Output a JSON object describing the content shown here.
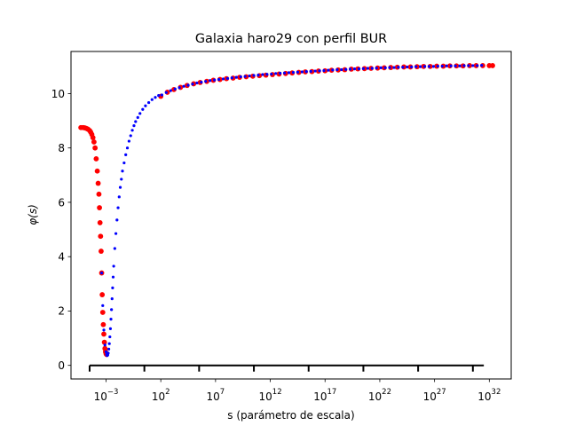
{
  "chart_data": {
    "type": "scatter",
    "title": "Galaxia haro29 con perfil BUR",
    "xlabel": "s (parámetro de escala)",
    "ylabel": "φ(s)",
    "xscale": "log",
    "xlim_log10": [
      -6.2,
      34
    ],
    "ylim": [
      -0.5,
      11.55
    ],
    "x_ticks_log10": [
      -3,
      2,
      7,
      12,
      17,
      22,
      27,
      32
    ],
    "x_tick_labels": [
      {
        "base": "10",
        "exp": "−3"
      },
      {
        "base": "10",
        "exp": "2"
      },
      {
        "base": "10",
        "exp": "7"
      },
      {
        "base": "10",
        "exp": "12"
      },
      {
        "base": "10",
        "exp": "17"
      },
      {
        "base": "10",
        "exp": "22"
      },
      {
        "base": "10",
        "exp": "27"
      },
      {
        "base": "10",
        "exp": "32"
      }
    ],
    "y_ticks": [
      0,
      2,
      4,
      6,
      8,
      10
    ],
    "y_tick_labels": [
      "0",
      "2",
      "4",
      "6",
      "8",
      "10"
    ],
    "grid": false,
    "legend": "none",
    "scale_bar": {
      "y": 0,
      "from_log10": -4.5,
      "to_log10": 31.5,
      "tick_positions_log10": [
        -4.5,
        0.5,
        5.5,
        10.5,
        15.5,
        20.5,
        25.5,
        30.5
      ]
    },
    "series": [
      {
        "color": "#ff0000",
        "marker_size": "large",
        "points": [
          [
            -5.3,
            8.75
          ],
          [
            -5.1,
            8.75
          ],
          [
            -4.95,
            8.74
          ],
          [
            -4.8,
            8.72
          ],
          [
            -4.65,
            8.69
          ],
          [
            -4.5,
            8.64
          ],
          [
            -4.4,
            8.58
          ],
          [
            -4.3,
            8.5
          ],
          [
            -4.2,
            8.38
          ],
          [
            -4.1,
            8.22
          ],
          [
            -4.0,
            8.0
          ],
          [
            -3.9,
            7.6
          ],
          [
            -3.8,
            7.15
          ],
          [
            -3.72,
            6.7
          ],
          [
            -3.65,
            6.3
          ],
          [
            -3.6,
            5.8
          ],
          [
            -3.55,
            5.25
          ],
          [
            -3.5,
            4.75
          ],
          [
            -3.45,
            4.2
          ],
          [
            -3.4,
            3.4
          ],
          [
            -3.35,
            2.6
          ],
          [
            -3.3,
            1.95
          ],
          [
            -3.25,
            1.5
          ],
          [
            -3.2,
            1.15
          ],
          [
            -3.15,
            0.85
          ],
          [
            -3.1,
            0.62
          ],
          [
            -3.05,
            0.5
          ],
          [
            -3.0,
            0.43
          ],
          [
            -2.95,
            0.4
          ],
          [
            2.0,
            9.9
          ],
          [
            2.6,
            10.05
          ],
          [
            3.2,
            10.15
          ],
          [
            3.8,
            10.23
          ],
          [
            4.4,
            10.3
          ],
          [
            5.0,
            10.36
          ],
          [
            5.6,
            10.41
          ],
          [
            6.2,
            10.45
          ],
          [
            6.8,
            10.49
          ],
          [
            7.4,
            10.52
          ],
          [
            8.0,
            10.55
          ],
          [
            8.6,
            10.57
          ],
          [
            9.2,
            10.6
          ],
          [
            9.8,
            10.62
          ],
          [
            10.4,
            10.64
          ],
          [
            11.0,
            10.66
          ],
          [
            11.6,
            10.68
          ],
          [
            12.2,
            10.7
          ],
          [
            12.8,
            10.72
          ],
          [
            13.4,
            10.74
          ],
          [
            14.0,
            10.76
          ],
          [
            14.6,
            10.78
          ],
          [
            15.2,
            10.8
          ],
          [
            15.8,
            10.81
          ],
          [
            16.4,
            10.83
          ],
          [
            17.0,
            10.84
          ],
          [
            17.6,
            10.86
          ],
          [
            18.2,
            10.87
          ],
          [
            18.8,
            10.88
          ],
          [
            19.4,
            10.9
          ],
          [
            20.0,
            10.91
          ],
          [
            20.6,
            10.92
          ],
          [
            21.2,
            10.93
          ],
          [
            21.8,
            10.94
          ],
          [
            22.4,
            10.95
          ],
          [
            23.0,
            10.96
          ],
          [
            23.6,
            10.97
          ],
          [
            24.2,
            10.98
          ],
          [
            24.8,
            10.98
          ],
          [
            25.4,
            10.99
          ],
          [
            26.0,
            11.0
          ],
          [
            26.6,
            11.0
          ],
          [
            27.2,
            11.01
          ],
          [
            27.8,
            11.01
          ],
          [
            28.4,
            11.02
          ],
          [
            29.0,
            11.02
          ],
          [
            29.6,
            11.02
          ],
          [
            30.2,
            11.03
          ],
          [
            30.8,
            11.03
          ],
          [
            31.4,
            11.03
          ],
          [
            32.0,
            11.03
          ],
          [
            32.3,
            11.03
          ]
        ]
      },
      {
        "color": "#0000ff",
        "marker_size": "small",
        "points": [
          [
            -3.4,
            3.4
          ],
          [
            -3.3,
            2.2
          ],
          [
            -3.2,
            1.3
          ],
          [
            -3.1,
            0.75
          ],
          [
            -3.0,
            0.5
          ],
          [
            -2.95,
            0.4
          ],
          [
            -2.9,
            0.36
          ],
          [
            -2.85,
            0.38
          ],
          [
            -2.8,
            0.45
          ],
          [
            -2.75,
            0.6
          ],
          [
            -2.7,
            0.8
          ],
          [
            -2.65,
            1.05
          ],
          [
            -2.6,
            1.35
          ],
          [
            -2.55,
            1.7
          ],
          [
            -2.5,
            2.05
          ],
          [
            -2.45,
            2.45
          ],
          [
            -2.4,
            2.85
          ],
          [
            -2.35,
            3.25
          ],
          [
            -2.3,
            3.65
          ],
          [
            -2.2,
            4.3
          ],
          [
            -2.1,
            4.85
          ],
          [
            -2.0,
            5.35
          ],
          [
            -1.9,
            5.8
          ],
          [
            -1.8,
            6.2
          ],
          [
            -1.7,
            6.55
          ],
          [
            -1.6,
            6.85
          ],
          [
            -1.5,
            7.15
          ],
          [
            -1.35,
            7.45
          ],
          [
            -1.2,
            7.75
          ],
          [
            -1.05,
            8.0
          ],
          [
            -0.9,
            8.25
          ],
          [
            -0.75,
            8.45
          ],
          [
            -0.6,
            8.65
          ],
          [
            -0.45,
            8.82
          ],
          [
            -0.3,
            8.97
          ],
          [
            -0.1,
            9.12
          ],
          [
            0.1,
            9.27
          ],
          [
            0.35,
            9.42
          ],
          [
            0.6,
            9.55
          ],
          [
            0.9,
            9.67
          ],
          [
            1.2,
            9.78
          ],
          [
            1.5,
            9.86
          ],
          [
            1.8,
            9.93
          ],
          [
            2.1,
            9.95
          ],
          [
            2.5,
            10.04
          ],
          [
            2.9,
            10.11
          ],
          [
            3.3,
            10.17
          ],
          [
            3.7,
            10.22
          ],
          [
            4.1,
            10.27
          ],
          [
            4.5,
            10.31
          ],
          [
            4.9,
            10.35
          ],
          [
            5.3,
            10.39
          ],
          [
            5.7,
            10.42
          ],
          [
            6.1,
            10.45
          ],
          [
            6.5,
            10.48
          ],
          [
            6.9,
            10.5
          ],
          [
            7.3,
            10.52
          ],
          [
            7.7,
            10.54
          ],
          [
            8.1,
            10.56
          ],
          [
            8.5,
            10.58
          ],
          [
            8.9,
            10.6
          ],
          [
            9.3,
            10.62
          ],
          [
            9.7,
            10.63
          ],
          [
            10.1,
            10.65
          ],
          [
            10.5,
            10.67
          ],
          [
            10.9,
            10.68
          ],
          [
            11.3,
            10.7
          ],
          [
            11.7,
            10.71
          ],
          [
            12.1,
            10.72
          ],
          [
            12.5,
            10.74
          ],
          [
            12.9,
            10.75
          ],
          [
            13.3,
            10.76
          ],
          [
            13.7,
            10.77
          ],
          [
            14.1,
            10.78
          ],
          [
            14.5,
            10.79
          ],
          [
            14.9,
            10.8
          ],
          [
            15.3,
            10.81
          ],
          [
            15.7,
            10.82
          ],
          [
            16.1,
            10.83
          ],
          [
            16.5,
            10.84
          ],
          [
            16.9,
            10.85
          ],
          [
            17.3,
            10.86
          ],
          [
            17.7,
            10.87
          ],
          [
            18.1,
            10.88
          ],
          [
            18.5,
            10.88
          ],
          [
            18.9,
            10.89
          ],
          [
            19.3,
            10.9
          ],
          [
            19.7,
            10.91
          ],
          [
            20.1,
            10.91
          ],
          [
            20.5,
            10.92
          ],
          [
            20.9,
            10.93
          ],
          [
            21.3,
            10.93
          ],
          [
            21.7,
            10.94
          ],
          [
            22.1,
            10.95
          ],
          [
            22.5,
            10.95
          ],
          [
            22.9,
            10.96
          ],
          [
            23.3,
            10.96
          ],
          [
            23.7,
            10.97
          ],
          [
            24.1,
            10.97
          ],
          [
            24.5,
            10.98
          ],
          [
            24.9,
            10.98
          ],
          [
            25.3,
            10.99
          ],
          [
            25.7,
            10.99
          ],
          [
            26.1,
            11.0
          ],
          [
            26.5,
            11.0
          ],
          [
            26.9,
            11.0
          ],
          [
            27.3,
            11.01
          ],
          [
            27.7,
            11.01
          ],
          [
            28.1,
            11.02
          ],
          [
            28.5,
            11.02
          ],
          [
            28.9,
            11.02
          ],
          [
            29.3,
            11.02
          ],
          [
            29.7,
            11.03
          ],
          [
            30.1,
            11.03
          ],
          [
            30.5,
            11.03
          ],
          [
            30.9,
            11.03
          ],
          [
            31.3,
            11.04
          ]
        ]
      }
    ]
  }
}
